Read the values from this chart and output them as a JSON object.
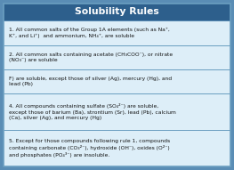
{
  "title": "Solubility Rules",
  "title_bg": "#2d5f8c",
  "title_color": "#ffffff",
  "border_color": "#5a8db5",
  "row_bg": "#ddeef8",
  "line_color": "#6a9ec0",
  "text_color": "#111111",
  "outer_bg": "#5a8db5",
  "rows": [
    "1. All common salts of the Group 1A elements (such as Na⁺,\nK⁺, and Li⁺)  and ammonium, NH₄⁺, are soluble",
    "2. All common salts containing acetate (CH₃COO⁻), or nitrate\n(NO₃⁻) are soluble",
    "F) are soluble, except those of silver (Ag), mercury (Hg), and\nlead (Pb)",
    "4. All compounds containing sulfate (SO₄²⁻) are soluble,\nexcept those of barium (Ba), strontium (Sr), lead (Pb), calcium\n(Ca), silver (Ag), and mercury (Hg)",
    "5. Except for those compounds following rule 1, compounds\ncontaining carbonate (CO₃²⁻), hydroxide (OH⁻), oxides (O²⁻)\nand phosphates (PO₄³⁻) are insoluble."
  ],
  "row_lines": [
    2,
    2,
    2,
    3,
    3
  ],
  "row_weights": [
    2,
    2,
    2,
    3,
    3
  ]
}
